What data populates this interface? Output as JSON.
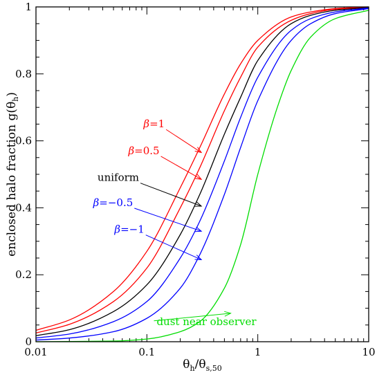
{
  "chart_data": {
    "type": "line",
    "xscale": "log",
    "xlim": [
      0.01,
      10
    ],
    "ylim": [
      0,
      1
    ],
    "xticks": [
      {
        "value": 0.01,
        "label": "0.01"
      },
      {
        "value": 0.1,
        "label": "0.1"
      },
      {
        "value": 1,
        "label": "1"
      },
      {
        "value": 10,
        "label": "10"
      }
    ],
    "yticks": [
      {
        "value": 0,
        "label": "0"
      },
      {
        "value": 0.2,
        "label": "0.2"
      },
      {
        "value": 0.4,
        "label": "0.4"
      },
      {
        "value": 0.6,
        "label": "0.6"
      },
      {
        "value": 0.8,
        "label": "0.8"
      },
      {
        "value": 1,
        "label": "1"
      }
    ],
    "xlabel": {
      "main": "θ",
      "sub1": "h",
      "mid": "/θ",
      "sub2": "s,50"
    },
    "ylabel": {
      "main": "enclosed halo fraction g(θ",
      "sub": "h",
      "end": ")"
    },
    "series": [
      {
        "name": "β=1",
        "color": "#ff0000",
        "x": [
          0.01,
          0.02,
          0.05,
          0.1,
          0.2,
          0.3,
          0.5,
          0.7,
          1,
          2,
          3,
          5,
          10
        ],
        "y": [
          0.034,
          0.065,
          0.15,
          0.27,
          0.46,
          0.58,
          0.74,
          0.83,
          0.9,
          0.97,
          0.985,
          0.995,
          1.0
        ]
      },
      {
        "name": "β=0.5",
        "color": "#ff0000",
        "x": [
          0.01,
          0.02,
          0.05,
          0.1,
          0.2,
          0.3,
          0.5,
          0.7,
          1,
          2,
          3,
          5,
          10
        ],
        "y": [
          0.026,
          0.052,
          0.12,
          0.22,
          0.4,
          0.52,
          0.69,
          0.79,
          0.88,
          0.96,
          0.98,
          0.993,
          0.999
        ]
      },
      {
        "name": "uniform",
        "color": "#000000",
        "x": [
          0.01,
          0.02,
          0.05,
          0.1,
          0.2,
          0.3,
          0.5,
          0.7,
          1,
          2,
          3,
          5,
          10
        ],
        "y": [
          0.018,
          0.036,
          0.09,
          0.17,
          0.32,
          0.44,
          0.62,
          0.73,
          0.84,
          0.95,
          0.975,
          0.99,
          0.998
        ]
      },
      {
        "name": "β=−0.5",
        "color": "#0000ff",
        "x": [
          0.01,
          0.02,
          0.05,
          0.1,
          0.2,
          0.3,
          0.5,
          0.7,
          1,
          2,
          3,
          5,
          10
        ],
        "y": [
          0.011,
          0.023,
          0.06,
          0.12,
          0.25,
          0.36,
          0.54,
          0.67,
          0.79,
          0.93,
          0.965,
          0.985,
          0.997
        ]
      },
      {
        "name": "β=−1",
        "color": "#0000ff",
        "x": [
          0.01,
          0.02,
          0.05,
          0.1,
          0.2,
          0.3,
          0.5,
          0.7,
          1,
          2,
          3,
          5,
          10
        ],
        "y": [
          0.005,
          0.011,
          0.03,
          0.07,
          0.16,
          0.26,
          0.44,
          0.58,
          0.72,
          0.9,
          0.95,
          0.98,
          0.995
        ]
      },
      {
        "name": "dust near observer",
        "color": "#00dd00",
        "x": [
          0.01,
          0.05,
          0.1,
          0.2,
          0.3,
          0.5,
          0.7,
          1,
          1.5,
          2,
          3,
          5,
          10
        ],
        "y": [
          0.0,
          0.002,
          0.008,
          0.03,
          0.06,
          0.16,
          0.29,
          0.5,
          0.7,
          0.81,
          0.91,
          0.965,
          0.99
        ]
      }
    ],
    "annotations": [
      {
        "series": 0,
        "beta": "β",
        "text": "=1",
        "color": "#ff0000",
        "label_x": 0.145,
        "label_y": 0.64,
        "arrow_to": [
          0.31,
          0.565
        ]
      },
      {
        "series": 1,
        "beta": "β",
        "text": "=0.5",
        "color": "#ff0000",
        "label_x": 0.13,
        "label_y": 0.56,
        "arrow_to": [
          0.31,
          0.485
        ]
      },
      {
        "series": 2,
        "beta": "",
        "text": "uniform",
        "color": "#000000",
        "label_x": 0.085,
        "label_y": 0.48,
        "arrow_to": [
          0.31,
          0.405
        ]
      },
      {
        "series": 3,
        "beta": "β",
        "text": "=−0.5",
        "color": "#0000ff",
        "label_x": 0.075,
        "label_y": 0.405,
        "arrow_to": [
          0.31,
          0.33
        ]
      },
      {
        "series": 4,
        "beta": "β",
        "text": "=−1",
        "color": "#0000ff",
        "label_x": 0.095,
        "label_y": 0.325,
        "arrow_to": [
          0.31,
          0.245
        ]
      },
      {
        "series": 5,
        "beta": "",
        "text": "dust near observer",
        "color": "#00dd00",
        "label_x": 0.97,
        "label_y": 0.05,
        "arrow_to": [
          0.57,
          0.085
        ]
      }
    ]
  }
}
